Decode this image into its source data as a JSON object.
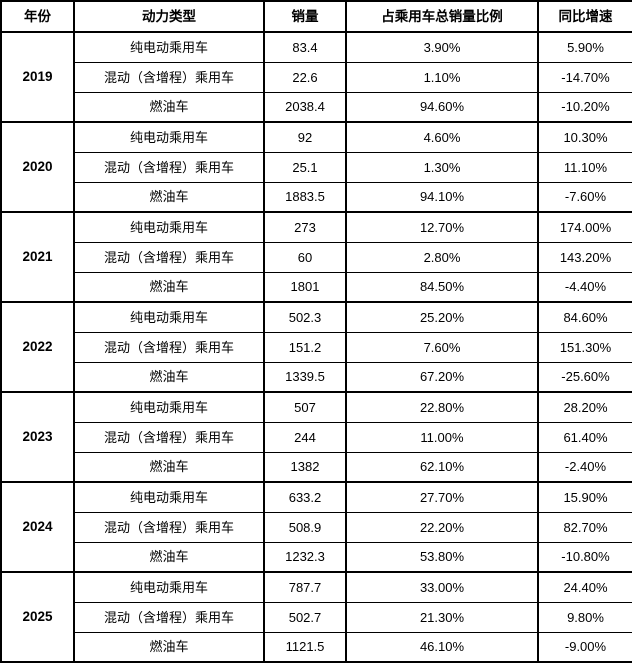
{
  "colors": {
    "border": "#000000",
    "text": "#000000",
    "background": "#ffffff"
  },
  "table": {
    "headers": [
      "年份",
      "动力类型",
      "销量",
      "占乘用车总销量比例",
      "同比增速"
    ],
    "groups": [
      {
        "year": "2019",
        "rows": [
          {
            "type": "纯电动乘用车",
            "sales": "83.4",
            "share": "3.90%",
            "yoy": "5.90%"
          },
          {
            "type": "混动（含增程）乘用车",
            "sales": "22.6",
            "share": "1.10%",
            "yoy": "-14.70%"
          },
          {
            "type": "燃油车",
            "sales": "2038.4",
            "share": "94.60%",
            "yoy": "-10.20%"
          }
        ]
      },
      {
        "year": "2020",
        "rows": [
          {
            "type": "纯电动乘用车",
            "sales": "92",
            "share": "4.60%",
            "yoy": "10.30%"
          },
          {
            "type": "混动（含增程）乘用车",
            "sales": "25.1",
            "share": "1.30%",
            "yoy": "11.10%"
          },
          {
            "type": "燃油车",
            "sales": "1883.5",
            "share": "94.10%",
            "yoy": "-7.60%"
          }
        ]
      },
      {
        "year": "2021",
        "rows": [
          {
            "type": "纯电动乘用车",
            "sales": "273",
            "share": "12.70%",
            "yoy": "174.00%"
          },
          {
            "type": "混动（含增程）乘用车",
            "sales": "60",
            "share": "2.80%",
            "yoy": "143.20%"
          },
          {
            "type": "燃油车",
            "sales": "1801",
            "share": "84.50%",
            "yoy": "-4.40%"
          }
        ]
      },
      {
        "year": "2022",
        "rows": [
          {
            "type": "纯电动乘用车",
            "sales": "502.3",
            "share": "25.20%",
            "yoy": "84.60%"
          },
          {
            "type": "混动（含增程）乘用车",
            "sales": "151.2",
            "share": "7.60%",
            "yoy": "151.30%"
          },
          {
            "type": "燃油车",
            "sales": "1339.5",
            "share": "67.20%",
            "yoy": "-25.60%"
          }
        ]
      },
      {
        "year": "2023",
        "rows": [
          {
            "type": "纯电动乘用车",
            "sales": "507",
            "share": "22.80%",
            "yoy": "28.20%"
          },
          {
            "type": "混动（含增程）乘用车",
            "sales": "244",
            "share": "11.00%",
            "yoy": "61.40%"
          },
          {
            "type": "燃油车",
            "sales": "1382",
            "share": "62.10%",
            "yoy": "-2.40%"
          }
        ]
      },
      {
        "year": "2024",
        "rows": [
          {
            "type": "纯电动乘用车",
            "sales": "633.2",
            "share": "27.70%",
            "yoy": "15.90%"
          },
          {
            "type": "混动（含增程）乘用车",
            "sales": "508.9",
            "share": "22.20%",
            "yoy": "82.70%"
          },
          {
            "type": "燃油车",
            "sales": "1232.3",
            "share": "53.80%",
            "yoy": "-10.80%"
          }
        ]
      },
      {
        "year": "2025",
        "rows": [
          {
            "type": "纯电动乘用车",
            "sales": "787.7",
            "share": "33.00%",
            "yoy": "24.40%"
          },
          {
            "type": "混动（含增程）乘用车",
            "sales": "502.7",
            "share": "21.30%",
            "yoy": "9.80%"
          },
          {
            "type": "燃油车",
            "sales": "1121.5",
            "share": "46.10%",
            "yoy": "-9.00%"
          }
        ]
      }
    ]
  },
  "chart_data": {
    "type": "table",
    "columns": [
      "年份",
      "动力类型",
      "销量",
      "占乘用车总销量比例",
      "同比增速"
    ],
    "rows": [
      [
        "2019",
        "纯电动乘用车",
        83.4,
        "3.90%",
        "5.90%"
      ],
      [
        "2019",
        "混动（含增程）乘用车",
        22.6,
        "1.10%",
        "-14.70%"
      ],
      [
        "2019",
        "燃油车",
        2038.4,
        "94.60%",
        "-10.20%"
      ],
      [
        "2020",
        "纯电动乘用车",
        92,
        "4.60%",
        "10.30%"
      ],
      [
        "2020",
        "混动（含增程）乘用车",
        25.1,
        "1.30%",
        "11.10%"
      ],
      [
        "2020",
        "燃油车",
        1883.5,
        "94.10%",
        "-7.60%"
      ],
      [
        "2021",
        "纯电动乘用车",
        273,
        "12.70%",
        "174.00%"
      ],
      [
        "2021",
        "混动（含增程）乘用车",
        60,
        "2.80%",
        "143.20%"
      ],
      [
        "2021",
        "燃油车",
        1801,
        "84.50%",
        "-4.40%"
      ],
      [
        "2022",
        "纯电动乘用车",
        502.3,
        "25.20%",
        "84.60%"
      ],
      [
        "2022",
        "混动（含增程）乘用车",
        151.2,
        "7.60%",
        "151.30%"
      ],
      [
        "2022",
        "燃油车",
        1339.5,
        "67.20%",
        "-25.60%"
      ],
      [
        "2023",
        "纯电动乘用车",
        507,
        "22.80%",
        "28.20%"
      ],
      [
        "2023",
        "混动（含增程）乘用车",
        244,
        "11.00%",
        "61.40%"
      ],
      [
        "2023",
        "燃油车",
        1382,
        "62.10%",
        "-2.40%"
      ],
      [
        "2024",
        "纯电动乘用车",
        633.2,
        "27.70%",
        "15.90%"
      ],
      [
        "2024",
        "混动（含增程）乘用车",
        508.9,
        "22.20%",
        "82.70%"
      ],
      [
        "2024",
        "燃油车",
        1232.3,
        "53.80%",
        "-10.80%"
      ],
      [
        "2025",
        "纯电动乘用车",
        787.7,
        "33.00%",
        "24.40%"
      ],
      [
        "2025",
        "混动（含增程）乘用车",
        502.7,
        "21.30%",
        "9.80%"
      ],
      [
        "2025",
        "燃油车",
        1121.5,
        "46.10%",
        "-9.00%"
      ]
    ]
  }
}
